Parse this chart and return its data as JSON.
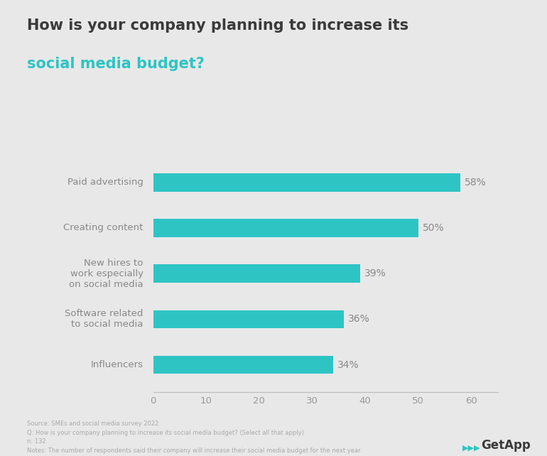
{
  "title_line1": "How is your company planning to increase its",
  "title_line2": "social media budget?",
  "title_color1": "#3a3a3a",
  "title_color2": "#2ec4c4",
  "categories": [
    "Influencers",
    "Software related\nto social media",
    "New hires to\nwork especially\non social media",
    "Creating content",
    "Paid advertising"
  ],
  "values": [
    34,
    36,
    39,
    50,
    58
  ],
  "labels": [
    "34%",
    "36%",
    "39%",
    "50%",
    "58%"
  ],
  "bar_color": "#2ec4c4",
  "background_color": "#e8e8e8",
  "label_color": "#888888",
  "tick_color": "#999999",
  "xlabel_ticks": [
    0,
    10,
    20,
    30,
    40,
    50,
    60
  ],
  "xlim": [
    0,
    65
  ],
  "footnote_lines": [
    "Source: SMEs and social media survey 2022",
    "Q: How is your company planning to increase its social media budget? (Select all that apply)",
    "n: 132",
    "Notes: The number of respondents said their company will increase their social media budget for the next year."
  ]
}
